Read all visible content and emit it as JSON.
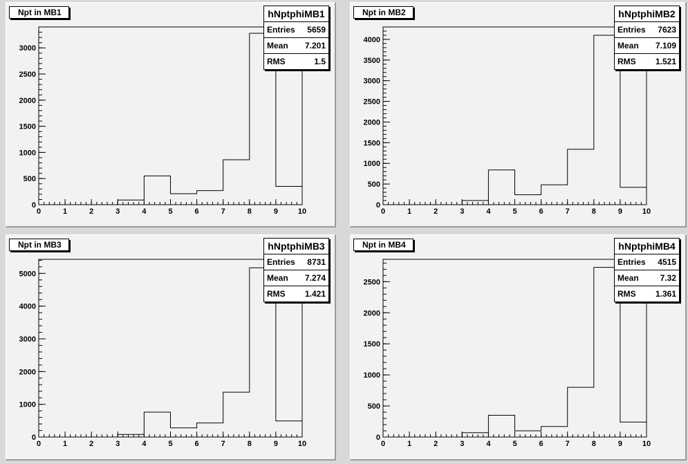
{
  "chart_data": [
    {
      "type": "bar",
      "title": "Npt in MB1",
      "hist_name": "hNptphiMB1",
      "stats": [
        {
          "label": "Entries",
          "value": "5659"
        },
        {
          "label": "Mean",
          "value": "7.201"
        },
        {
          "label": "RMS",
          "value": "1.5"
        }
      ],
      "bin_edges": [
        0,
        1,
        2,
        3,
        4,
        5,
        6,
        7,
        8,
        9,
        10
      ],
      "values": [
        0,
        0,
        0,
        90,
        550,
        210,
        270,
        860,
        3280,
        350
      ],
      "xlim": [
        0,
        10
      ],
      "ylim": [
        0,
        3400
      ],
      "xticks": [
        0,
        1,
        2,
        3,
        4,
        5,
        6,
        7,
        8,
        9,
        10
      ],
      "yticks": [
        0,
        500,
        1000,
        1500,
        2000,
        2500,
        3000
      ]
    },
    {
      "type": "bar",
      "title": "Npt in MB2",
      "hist_name": "hNptphiMB2",
      "stats": [
        {
          "label": "Entries",
          "value": "7623"
        },
        {
          "label": "Mean",
          "value": "7.109"
        },
        {
          "label": "RMS",
          "value": "1.521"
        }
      ],
      "bin_edges": [
        0,
        1,
        2,
        3,
        4,
        5,
        6,
        7,
        8,
        9,
        10
      ],
      "values": [
        0,
        0,
        0,
        100,
        840,
        240,
        480,
        1340,
        4100,
        420
      ],
      "xlim": [
        0,
        10
      ],
      "ylim": [
        0,
        4300
      ],
      "xticks": [
        0,
        1,
        2,
        3,
        4,
        5,
        6,
        7,
        8,
        9,
        10
      ],
      "yticks": [
        0,
        500,
        1000,
        1500,
        2000,
        2500,
        3000,
        3500,
        4000
      ]
    },
    {
      "type": "bar",
      "title": "Npt in MB3",
      "hist_name": "hNptphiMB3",
      "stats": [
        {
          "label": "Entries",
          "value": "8731"
        },
        {
          "label": "Mean",
          "value": "7.274"
        },
        {
          "label": "RMS",
          "value": "1.421"
        }
      ],
      "bin_edges": [
        0,
        1,
        2,
        3,
        4,
        5,
        6,
        7,
        8,
        9,
        10
      ],
      "values": [
        0,
        0,
        0,
        80,
        760,
        280,
        430,
        1370,
        5170,
        490
      ],
      "xlim": [
        0,
        10
      ],
      "ylim": [
        0,
        5430
      ],
      "xticks": [
        0,
        1,
        2,
        3,
        4,
        5,
        6,
        7,
        8,
        9,
        10
      ],
      "yticks": [
        0,
        1000,
        2000,
        3000,
        4000,
        5000
      ]
    },
    {
      "type": "bar",
      "title": "Npt in MB4",
      "hist_name": "hNptphiMB4",
      "stats": [
        {
          "label": "Entries",
          "value": "4515"
        },
        {
          "label": "Mean",
          "value": "7.32"
        },
        {
          "label": "RMS",
          "value": "1.361"
        }
      ],
      "bin_edges": [
        0,
        1,
        2,
        3,
        4,
        5,
        6,
        7,
        8,
        9,
        10
      ],
      "values": [
        0,
        0,
        0,
        70,
        350,
        100,
        170,
        800,
        2730,
        240
      ],
      "xlim": [
        0,
        10
      ],
      "ylim": [
        0,
        2860
      ],
      "xticks": [
        0,
        1,
        2,
        3,
        4,
        5,
        6,
        7,
        8,
        9,
        10
      ],
      "yticks": [
        0,
        500,
        1000,
        1500,
        2000,
        2500
      ]
    }
  ]
}
